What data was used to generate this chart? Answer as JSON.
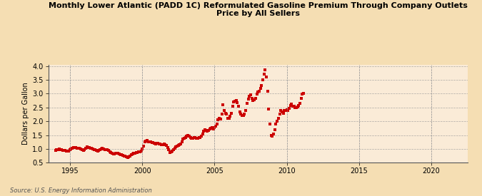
{
  "title": "Monthly Lower Atlantic (PADD 1C) Reformulated Gasoline Premium Through Company Outlets\nPrice by All Sellers",
  "ylabel": "Dollars per Gallon",
  "source": "Source: U.S. Energy Information Administration",
  "background_color": "#f5deb3",
  "plot_bg_color": "#faebd7",
  "marker_color": "#cc0000",
  "xlim": [
    1993.5,
    2022.5
  ],
  "ylim": [
    0.5,
    4.05
  ],
  "xticks": [
    1995,
    2000,
    2005,
    2010,
    2015,
    2020
  ],
  "yticks": [
    0.5,
    1.0,
    1.5,
    2.0,
    2.5,
    3.0,
    3.5,
    4.0
  ],
  "data": [
    [
      1994.0,
      0.94
    ],
    [
      1994.08,
      0.96
    ],
    [
      1994.17,
      0.97
    ],
    [
      1994.25,
      0.99
    ],
    [
      1994.33,
      0.97
    ],
    [
      1994.42,
      0.96
    ],
    [
      1994.5,
      0.94
    ],
    [
      1994.58,
      0.95
    ],
    [
      1994.67,
      0.94
    ],
    [
      1994.75,
      0.93
    ],
    [
      1994.83,
      0.93
    ],
    [
      1994.92,
      0.93
    ],
    [
      1995.0,
      0.96
    ],
    [
      1995.08,
      0.99
    ],
    [
      1995.17,
      1.02
    ],
    [
      1995.25,
      1.04
    ],
    [
      1995.33,
      1.06
    ],
    [
      1995.42,
      1.05
    ],
    [
      1995.5,
      1.02
    ],
    [
      1995.58,
      1.01
    ],
    [
      1995.67,
      1.01
    ],
    [
      1995.75,
      1.0
    ],
    [
      1995.83,
      0.96
    ],
    [
      1995.92,
      0.95
    ],
    [
      1996.0,
      0.98
    ],
    [
      1996.08,
      1.03
    ],
    [
      1996.17,
      1.08
    ],
    [
      1996.25,
      1.06
    ],
    [
      1996.33,
      1.04
    ],
    [
      1996.42,
      1.02
    ],
    [
      1996.5,
      1.01
    ],
    [
      1996.58,
      1.0
    ],
    [
      1996.67,
      0.97
    ],
    [
      1996.75,
      0.97
    ],
    [
      1996.83,
      0.94
    ],
    [
      1996.92,
      0.92
    ],
    [
      1997.0,
      0.95
    ],
    [
      1997.08,
      0.97
    ],
    [
      1997.17,
      1.0
    ],
    [
      1997.25,
      1.01
    ],
    [
      1997.33,
      1.0
    ],
    [
      1997.42,
      0.98
    ],
    [
      1997.5,
      0.96
    ],
    [
      1997.58,
      0.96
    ],
    [
      1997.67,
      0.94
    ],
    [
      1997.75,
      0.9
    ],
    [
      1997.83,
      0.87
    ],
    [
      1997.92,
      0.84
    ],
    [
      1998.0,
      0.82
    ],
    [
      1998.08,
      0.82
    ],
    [
      1998.17,
      0.83
    ],
    [
      1998.25,
      0.85
    ],
    [
      1998.33,
      0.85
    ],
    [
      1998.42,
      0.82
    ],
    [
      1998.5,
      0.8
    ],
    [
      1998.58,
      0.79
    ],
    [
      1998.67,
      0.77
    ],
    [
      1998.75,
      0.74
    ],
    [
      1998.83,
      0.73
    ],
    [
      1998.92,
      0.71
    ],
    [
      1999.0,
      0.7
    ],
    [
      1999.08,
      0.71
    ],
    [
      1999.17,
      0.73
    ],
    [
      1999.25,
      0.78
    ],
    [
      1999.33,
      0.82
    ],
    [
      1999.42,
      0.83
    ],
    [
      1999.5,
      0.84
    ],
    [
      1999.58,
      0.87
    ],
    [
      1999.67,
      0.88
    ],
    [
      1999.75,
      0.89
    ],
    [
      1999.83,
      0.9
    ],
    [
      1999.92,
      0.93
    ],
    [
      2000.0,
      1.0
    ],
    [
      2000.08,
      1.1
    ],
    [
      2000.17,
      1.25
    ],
    [
      2000.25,
      1.27
    ],
    [
      2000.33,
      1.3
    ],
    [
      2000.42,
      1.26
    ],
    [
      2000.5,
      1.26
    ],
    [
      2000.58,
      1.25
    ],
    [
      2000.67,
      1.24
    ],
    [
      2000.75,
      1.22
    ],
    [
      2000.83,
      1.2
    ],
    [
      2000.92,
      1.19
    ],
    [
      2001.0,
      1.2
    ],
    [
      2001.08,
      1.2
    ],
    [
      2001.17,
      1.18
    ],
    [
      2001.25,
      1.18
    ],
    [
      2001.33,
      1.16
    ],
    [
      2001.42,
      1.14
    ],
    [
      2001.5,
      1.18
    ],
    [
      2001.58,
      1.15
    ],
    [
      2001.67,
      1.12
    ],
    [
      2001.75,
      1.05
    ],
    [
      2001.83,
      0.98
    ],
    [
      2001.92,
      0.88
    ],
    [
      2002.0,
      0.9
    ],
    [
      2002.08,
      0.92
    ],
    [
      2002.17,
      0.97
    ],
    [
      2002.25,
      1.02
    ],
    [
      2002.33,
      1.08
    ],
    [
      2002.42,
      1.1
    ],
    [
      2002.5,
      1.12
    ],
    [
      2002.58,
      1.15
    ],
    [
      2002.67,
      1.18
    ],
    [
      2002.75,
      1.25
    ],
    [
      2002.83,
      1.35
    ],
    [
      2002.92,
      1.38
    ],
    [
      2003.0,
      1.42
    ],
    [
      2003.08,
      1.45
    ],
    [
      2003.17,
      1.5
    ],
    [
      2003.25,
      1.45
    ],
    [
      2003.33,
      1.42
    ],
    [
      2003.42,
      1.38
    ],
    [
      2003.5,
      1.38
    ],
    [
      2003.58,
      1.4
    ],
    [
      2003.67,
      1.42
    ],
    [
      2003.75,
      1.38
    ],
    [
      2003.83,
      1.38
    ],
    [
      2003.92,
      1.4
    ],
    [
      2004.0,
      1.42
    ],
    [
      2004.08,
      1.45
    ],
    [
      2004.17,
      1.55
    ],
    [
      2004.25,
      1.65
    ],
    [
      2004.33,
      1.7
    ],
    [
      2004.42,
      1.68
    ],
    [
      2004.5,
      1.65
    ],
    [
      2004.58,
      1.68
    ],
    [
      2004.67,
      1.72
    ],
    [
      2004.75,
      1.75
    ],
    [
      2004.83,
      1.78
    ],
    [
      2004.92,
      1.72
    ],
    [
      2005.0,
      1.78
    ],
    [
      2005.08,
      1.82
    ],
    [
      2005.17,
      1.9
    ],
    [
      2005.25,
      2.05
    ],
    [
      2005.33,
      2.1
    ],
    [
      2005.42,
      2.08
    ],
    [
      2005.5,
      2.25
    ],
    [
      2005.58,
      2.6
    ],
    [
      2005.67,
      2.4
    ],
    [
      2005.75,
      2.3
    ],
    [
      2005.83,
      2.25
    ],
    [
      2005.92,
      2.1
    ],
    [
      2006.0,
      2.12
    ],
    [
      2006.08,
      2.18
    ],
    [
      2006.17,
      2.3
    ],
    [
      2006.25,
      2.55
    ],
    [
      2006.33,
      2.7
    ],
    [
      2006.42,
      2.72
    ],
    [
      2006.5,
      2.75
    ],
    [
      2006.58,
      2.68
    ],
    [
      2006.67,
      2.55
    ],
    [
      2006.75,
      2.35
    ],
    [
      2006.83,
      2.25
    ],
    [
      2006.92,
      2.2
    ],
    [
      2007.0,
      2.22
    ],
    [
      2007.08,
      2.25
    ],
    [
      2007.17,
      2.4
    ],
    [
      2007.25,
      2.65
    ],
    [
      2007.33,
      2.8
    ],
    [
      2007.42,
      2.9
    ],
    [
      2007.5,
      2.95
    ],
    [
      2007.58,
      2.82
    ],
    [
      2007.67,
      2.75
    ],
    [
      2007.75,
      2.78
    ],
    [
      2007.83,
      2.82
    ],
    [
      2007.92,
      2.98
    ],
    [
      2008.0,
      3.05
    ],
    [
      2008.08,
      3.1
    ],
    [
      2008.17,
      3.2
    ],
    [
      2008.25,
      3.3
    ],
    [
      2008.33,
      3.5
    ],
    [
      2008.42,
      3.7
    ],
    [
      2008.5,
      3.85
    ],
    [
      2008.58,
      3.6
    ],
    [
      2008.67,
      3.1
    ],
    [
      2008.75,
      2.45
    ],
    [
      2008.83,
      1.9
    ],
    [
      2008.92,
      1.5
    ],
    [
      2009.0,
      1.45
    ],
    [
      2009.08,
      1.55
    ],
    [
      2009.17,
      1.7
    ],
    [
      2009.25,
      1.9
    ],
    [
      2009.33,
      2.0
    ],
    [
      2009.42,
      2.1
    ],
    [
      2009.5,
      2.25
    ],
    [
      2009.58,
      2.4
    ],
    [
      2009.67,
      2.35
    ],
    [
      2009.75,
      2.28
    ],
    [
      2009.83,
      2.38
    ],
    [
      2009.92,
      2.4
    ],
    [
      2010.0,
      2.42
    ],
    [
      2010.08,
      2.38
    ],
    [
      2010.17,
      2.48
    ],
    [
      2010.25,
      2.58
    ],
    [
      2010.33,
      2.62
    ],
    [
      2010.42,
      2.55
    ],
    [
      2010.5,
      2.55
    ],
    [
      2010.58,
      2.5
    ],
    [
      2010.67,
      2.5
    ],
    [
      2010.75,
      2.52
    ],
    [
      2010.83,
      2.58
    ],
    [
      2010.92,
      2.65
    ],
    [
      2011.0,
      2.82
    ],
    [
      2011.08,
      2.98
    ],
    [
      2011.17,
      3.0
    ]
  ]
}
